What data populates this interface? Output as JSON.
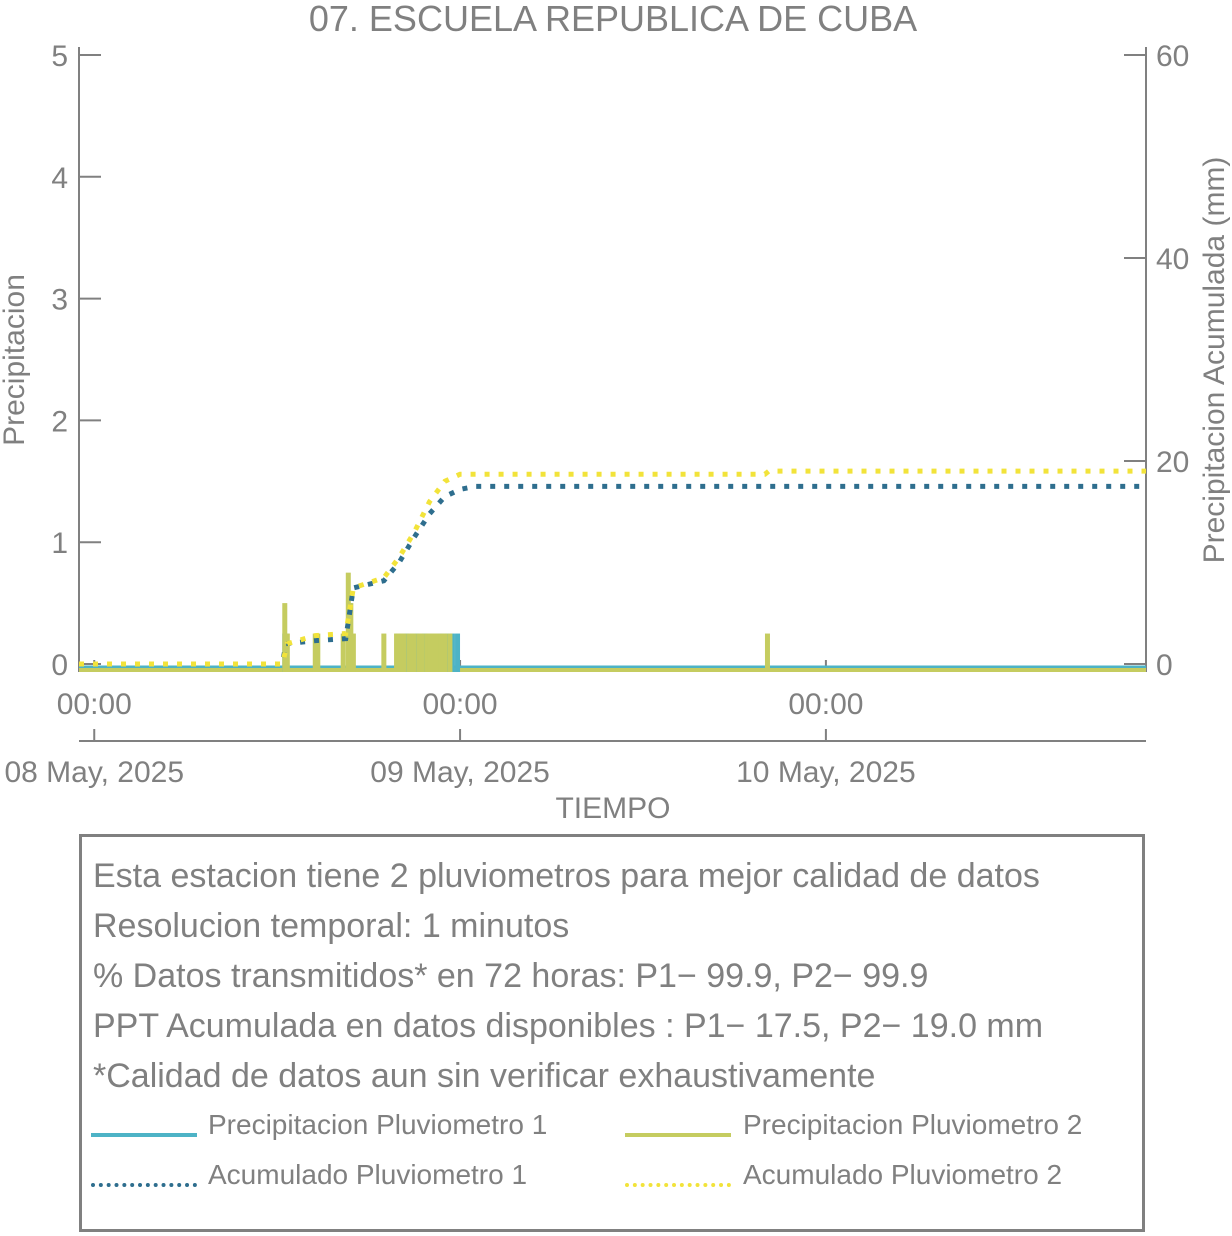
{
  "chart_data": {
    "type": "bar",
    "title": "07. ESCUELA REPUBLICA DE CUBA",
    "xlabel": "TIEMPO",
    "ylabel": "Precipitacion",
    "y2label": "Precipitacion Acumulada (mm)",
    "x_range": [
      "2025-05-07 23:00",
      "2025-05-10 21:00"
    ],
    "ylim": [
      0,
      5
    ],
    "y2lim": [
      0,
      60
    ],
    "yticks": [
      "0",
      "1",
      "2",
      "3",
      "4",
      "5"
    ],
    "y2ticks": [
      "0",
      "20",
      "40",
      "60"
    ],
    "time_ticks": [
      "00:00",
      "00:00",
      "00:00"
    ],
    "date_ticks": [
      "08 May, 2025",
      "09 May, 2025",
      "10 May, 2025"
    ],
    "grid": false,
    "series": [
      {
        "name": "Precipitacion Pluviometro 1",
        "kind": "bar",
        "color": "#4db3c6",
        "points": [
          [
            "2025-05-08 12:30",
            0.25
          ],
          [
            "2025-05-08 12:35",
            0.25
          ],
          [
            "2025-05-08 16:45",
            0.5
          ],
          [
            "2025-05-08 19:55",
            0.25
          ],
          [
            "2025-05-08 20:30",
            0.25
          ],
          [
            "2025-05-08 21:10",
            0.25
          ],
          [
            "2025-05-08 21:40",
            0.25
          ],
          [
            "2025-05-08 21:45",
            0.25
          ],
          [
            "2025-05-08 22:40",
            0.25
          ],
          [
            "2025-05-08 22:50",
            0.25
          ],
          [
            "2025-05-08 23:10",
            0.25
          ],
          [
            "2025-05-08 23:30",
            0.25
          ],
          [
            "2025-05-08 23:50",
            0.25
          ]
        ]
      },
      {
        "name": "Precipitacion Pluviometro 2",
        "kind": "bar",
        "color": "#c5cc60",
        "points": [
          [
            "2025-05-08 12:30",
            0.5
          ],
          [
            "2025-05-08 12:40",
            0.25
          ],
          [
            "2025-05-08 14:30",
            0.25
          ],
          [
            "2025-05-08 14:40",
            0.25
          ],
          [
            "2025-05-08 16:20",
            0.25
          ],
          [
            "2025-05-08 16:40",
            0.75
          ],
          [
            "2025-05-08 16:50",
            0.5
          ],
          [
            "2025-05-08 17:00",
            0.25
          ],
          [
            "2025-05-08 19:00",
            0.25
          ],
          [
            "2025-05-08 19:50",
            0.25
          ],
          [
            "2025-05-08 20:00",
            0.25
          ],
          [
            "2025-05-08 20:10",
            0.25
          ],
          [
            "2025-05-08 20:20",
            0.25
          ],
          [
            "2025-05-08 20:40",
            0.25
          ],
          [
            "2025-05-08 20:50",
            0.25
          ],
          [
            "2025-05-08 21:00",
            0.25
          ],
          [
            "2025-05-08 21:20",
            0.25
          ],
          [
            "2025-05-08 21:30",
            0.25
          ],
          [
            "2025-05-08 21:50",
            0.25
          ],
          [
            "2025-05-08 22:00",
            0.25
          ],
          [
            "2025-05-08 22:10",
            0.25
          ],
          [
            "2025-05-08 22:20",
            0.25
          ],
          [
            "2025-05-08 22:30",
            0.25
          ],
          [
            "2025-05-08 22:45",
            0.25
          ],
          [
            "2025-05-08 23:00",
            0.25
          ],
          [
            "2025-05-08 23:20",
            0.25
          ],
          [
            "2025-05-09 20:10",
            0.25
          ]
        ]
      },
      {
        "name": "Acumulado Pluviometro 1",
        "kind": "line",
        "axis": "right",
        "color": "#2e6e8e",
        "points": [
          [
            "2025-05-07 23:00",
            0
          ],
          [
            "2025-05-08 12:20",
            0
          ],
          [
            "2025-05-08 12:35",
            2
          ],
          [
            "2025-05-08 14:30",
            2.3
          ],
          [
            "2025-05-08 16:30",
            2.5
          ],
          [
            "2025-05-08 17:00",
            7.5
          ],
          [
            "2025-05-08 19:00",
            8.2
          ],
          [
            "2025-05-08 20:00",
            10
          ],
          [
            "2025-05-08 21:00",
            12.5
          ],
          [
            "2025-05-08 22:00",
            14.8
          ],
          [
            "2025-05-08 23:00",
            16.5
          ],
          [
            "2025-05-09 00:00",
            17.2
          ],
          [
            "2025-05-09 01:00",
            17.5
          ],
          [
            "2025-05-10 21:00",
            17.5
          ]
        ]
      },
      {
        "name": "Acumulado Pluviometro 2",
        "kind": "line",
        "axis": "right",
        "color": "#f2e33a",
        "points": [
          [
            "2025-05-07 23:00",
            0
          ],
          [
            "2025-05-08 12:20",
            0
          ],
          [
            "2025-05-08 12:40",
            2
          ],
          [
            "2025-05-08 14:30",
            2.8
          ],
          [
            "2025-05-08 16:30",
            3
          ],
          [
            "2025-05-08 17:00",
            7.5
          ],
          [
            "2025-05-08 19:00",
            8.5
          ],
          [
            "2025-05-08 20:00",
            10.5
          ],
          [
            "2025-05-08 21:00",
            13
          ],
          [
            "2025-05-08 22:00",
            16
          ],
          [
            "2025-05-08 23:00",
            18
          ],
          [
            "2025-05-09 00:00",
            18.7
          ],
          [
            "2025-05-09 20:00",
            18.7
          ],
          [
            "2025-05-09 20:15",
            19
          ],
          [
            "2025-05-10 21:00",
            19
          ]
        ]
      }
    ]
  },
  "info": {
    "lines": [
      "Esta estacion tiene 2 pluviometros para mejor calidad de datos",
      "Resolucion temporal: 1 minutos",
      "% Datos transmitidos* en 72 horas: P1− 99.9, P2− 99.9",
      "PPT Acumulada en datos disponibles : P1− 17.5, P2− 19.0 mm",
      "*Calidad de datos aun sin verificar exhaustivamente"
    ]
  },
  "legend": {
    "items": [
      {
        "label": "Precipitacion Pluviometro 1",
        "color": "#4db3c6",
        "style": "solid"
      },
      {
        "label": "Precipitacion Pluviometro 2",
        "color": "#c5cc60",
        "style": "solid"
      },
      {
        "label": "Acumulado Pluviometro 1",
        "color": "#2e6e8e",
        "style": "dotted"
      },
      {
        "label": "Acumulado Pluviometro 2",
        "color": "#f2e33a",
        "style": "dotted"
      }
    ]
  },
  "colors": {
    "axis": "#808080",
    "background": "#ffffff"
  }
}
